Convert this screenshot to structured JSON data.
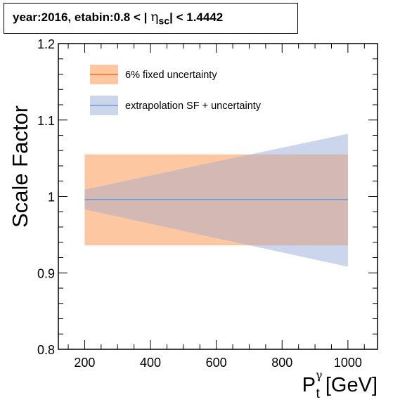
{
  "header": {
    "title_prefix": "year:2016, etabin:0.8 < |",
    "eta_symbol": "η",
    "eta_sub": "sc",
    "title_suffix": "| < 1.4442"
  },
  "colors": {
    "fixed_band": "#fdc7a2",
    "fixed_line": "#ff6a13",
    "extrap_band": "#cbd6ec",
    "extrap_line": "#6f98d6",
    "overlap_band": "#d4b8b3"
  },
  "chart_data": {
    "type": "line",
    "ylabel": "Scale Factor",
    "xlabel_main": "P",
    "xlabel_sub": "t",
    "xlabel_sup": "γ",
    "xlabel_unit": "[GeV]",
    "xlim": [
      120,
      1090
    ],
    "ylim": [
      0.8,
      1.2
    ],
    "x_ticks": [
      200,
      400,
      600,
      800,
      1000
    ],
    "x_tick_labels": [
      "200",
      "400",
      "600",
      "800",
      "1000"
    ],
    "y_ticks": [
      0.8,
      0.9,
      1.0,
      1.1,
      1.2
    ],
    "y_tick_labels": [
      "0.8",
      "0.9",
      "1",
      "1.1",
      "1.2"
    ],
    "legend": [
      {
        "label": "6% fixed uncertainty",
        "style": "fixed"
      },
      {
        "label": "extrapolation SF + uncertainty",
        "style": "extrap"
      }
    ],
    "sf_value": 0.996,
    "series": [
      {
        "name": "6% fixed uncertainty",
        "x": [
          200,
          1000
        ],
        "lower": [
          0.936,
          0.936
        ],
        "upper": [
          1.055,
          1.055
        ]
      },
      {
        "name": "extrapolation SF + uncertainty",
        "x": [
          200,
          1000
        ],
        "central": [
          0.996,
          0.996
        ],
        "lower": [
          0.983,
          0.908
        ],
        "upper": [
          1.009,
          1.082
        ]
      }
    ]
  }
}
